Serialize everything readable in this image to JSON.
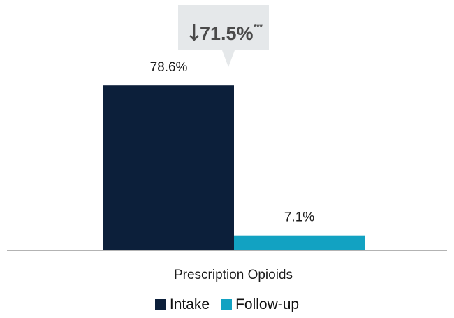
{
  "chart_data": {
    "type": "bar",
    "categories": [
      "Prescription Opioids"
    ],
    "series": [
      {
        "name": "Intake",
        "values": [
          78.6
        ],
        "color": "#0c1f3a"
      },
      {
        "name": "Follow-up",
        "values": [
          7.1
        ],
        "color": "#12a2c2"
      }
    ],
    "data_labels": [
      "78.6%",
      "7.1%"
    ],
    "ylim": [
      0,
      100
    ],
    "grid": false,
    "legend": "bottom-center",
    "annotation": {
      "arrow": "↓",
      "text": "71.5%",
      "significance": "***"
    }
  }
}
